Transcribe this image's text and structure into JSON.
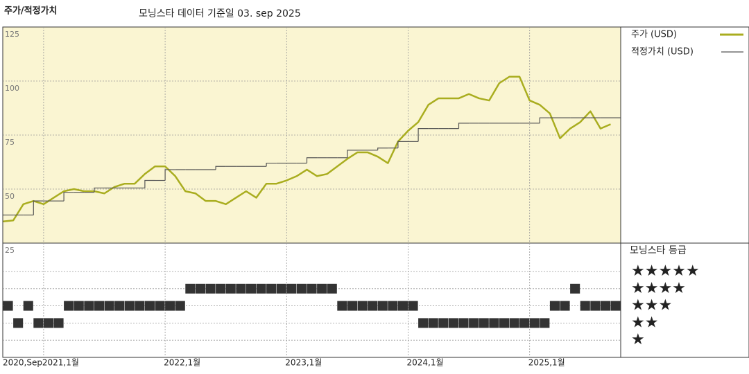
{
  "chart_data": {
    "type": "line",
    "title": "주가/적정가치",
    "subtitle": "모닝스타 데이터 기준일 03. sep 2025",
    "x": [
      "2020-09",
      "2020-10",
      "2020-11",
      "2020-12",
      "2021-01",
      "2021-02",
      "2021-03",
      "2021-04",
      "2021-05",
      "2021-06",
      "2021-07",
      "2021-08",
      "2021-09",
      "2021-10",
      "2021-11",
      "2021-12",
      "2022-01",
      "2022-02",
      "2022-03",
      "2022-04",
      "2022-05",
      "2022-06",
      "2022-07",
      "2022-08",
      "2022-09",
      "2022-10",
      "2022-11",
      "2022-12",
      "2023-01",
      "2023-02",
      "2023-03",
      "2023-04",
      "2023-05",
      "2023-06",
      "2023-07",
      "2023-08",
      "2023-09",
      "2023-10",
      "2023-11",
      "2023-12",
      "2024-01",
      "2024-02",
      "2024-03",
      "2024-04",
      "2024-05",
      "2024-06",
      "2024-07",
      "2024-08",
      "2024-09",
      "2024-10",
      "2024-11",
      "2024-12",
      "2025-01",
      "2025-02",
      "2025-03",
      "2025-04",
      "2025-05",
      "2025-06",
      "2025-07",
      "2025-08",
      "2025-09"
    ],
    "xticks": [
      {
        "value": "2020-09",
        "label": "2020,Sep"
      },
      {
        "value": "2021-01",
        "label": "2021,1월"
      },
      {
        "value": "2022-01",
        "label": "2022,1월"
      },
      {
        "value": "2023-01",
        "label": "2023,1월"
      },
      {
        "value": "2024-01",
        "label": "2024,1월"
      },
      {
        "value": "2025-01",
        "label": "2025,1월"
      }
    ],
    "ylim": [
      25,
      125
    ],
    "yticks": [
      25,
      50,
      75,
      100,
      125
    ],
    "grid": true,
    "series": [
      {
        "name": "주가 (USD)",
        "color": "#a9ad1f",
        "values": [
          35,
          35.5,
          43,
          44.5,
          43,
          46,
          49,
          50,
          49,
          49,
          48,
          51,
          52.5,
          52.5,
          57,
          60.5,
          60.5,
          56,
          49,
          48,
          44.5,
          44.5,
          43,
          46,
          49,
          46,
          52.5,
          52.5,
          54,
          56,
          59,
          56,
          57,
          60.5,
          64,
          67,
          67,
          65,
          62,
          72,
          77,
          81,
          89,
          92,
          92,
          92,
          94,
          92,
          91,
          99,
          102,
          102,
          91,
          89,
          85,
          73.5,
          78,
          81,
          86,
          78,
          80
        ]
      },
      {
        "name": "적정가치 (USD)",
        "color": "#555555",
        "step": true,
        "values": [
          38,
          38,
          38,
          44.5,
          44.5,
          44.5,
          48.5,
          48.5,
          48.5,
          50.5,
          50.5,
          50.5,
          50.5,
          50.5,
          54,
          54,
          59,
          59,
          59,
          59,
          59,
          60.5,
          60.5,
          60.5,
          60.5,
          60.5,
          62,
          62,
          62,
          62,
          64.5,
          64.5,
          64.5,
          64.5,
          68,
          68,
          68,
          69,
          69,
          72,
          72,
          78,
          78,
          78,
          78,
          80.5,
          80.5,
          80.5,
          80.5,
          80.5,
          80.5,
          80.5,
          80.5,
          83,
          83,
          83,
          83,
          83,
          83,
          83,
          83
        ]
      }
    ],
    "rating_title": "모닝스타 등급",
    "rating_levels": [
      {
        "value": 5,
        "label": "★★★★★"
      },
      {
        "value": 4,
        "label": "★★★★"
      },
      {
        "value": 3,
        "label": "★★★"
      },
      {
        "value": 2,
        "label": "★★"
      },
      {
        "value": 1,
        "label": "★"
      }
    ],
    "rating_color": "#333333",
    "ratings": [
      3,
      2,
      3,
      2,
      2,
      2,
      3,
      3,
      3,
      3,
      3,
      3,
      3,
      3,
      3,
      3,
      3,
      3,
      4,
      4,
      4,
      4,
      4,
      4,
      4,
      4,
      4,
      4,
      4,
      4,
      4,
      4,
      4,
      3,
      3,
      3,
      3,
      3,
      3,
      3,
      3,
      2,
      2,
      2,
      2,
      2,
      2,
      2,
      2,
      2,
      2,
      2,
      2,
      2,
      3,
      3,
      4,
      3,
      3,
      3,
      3
    ]
  }
}
